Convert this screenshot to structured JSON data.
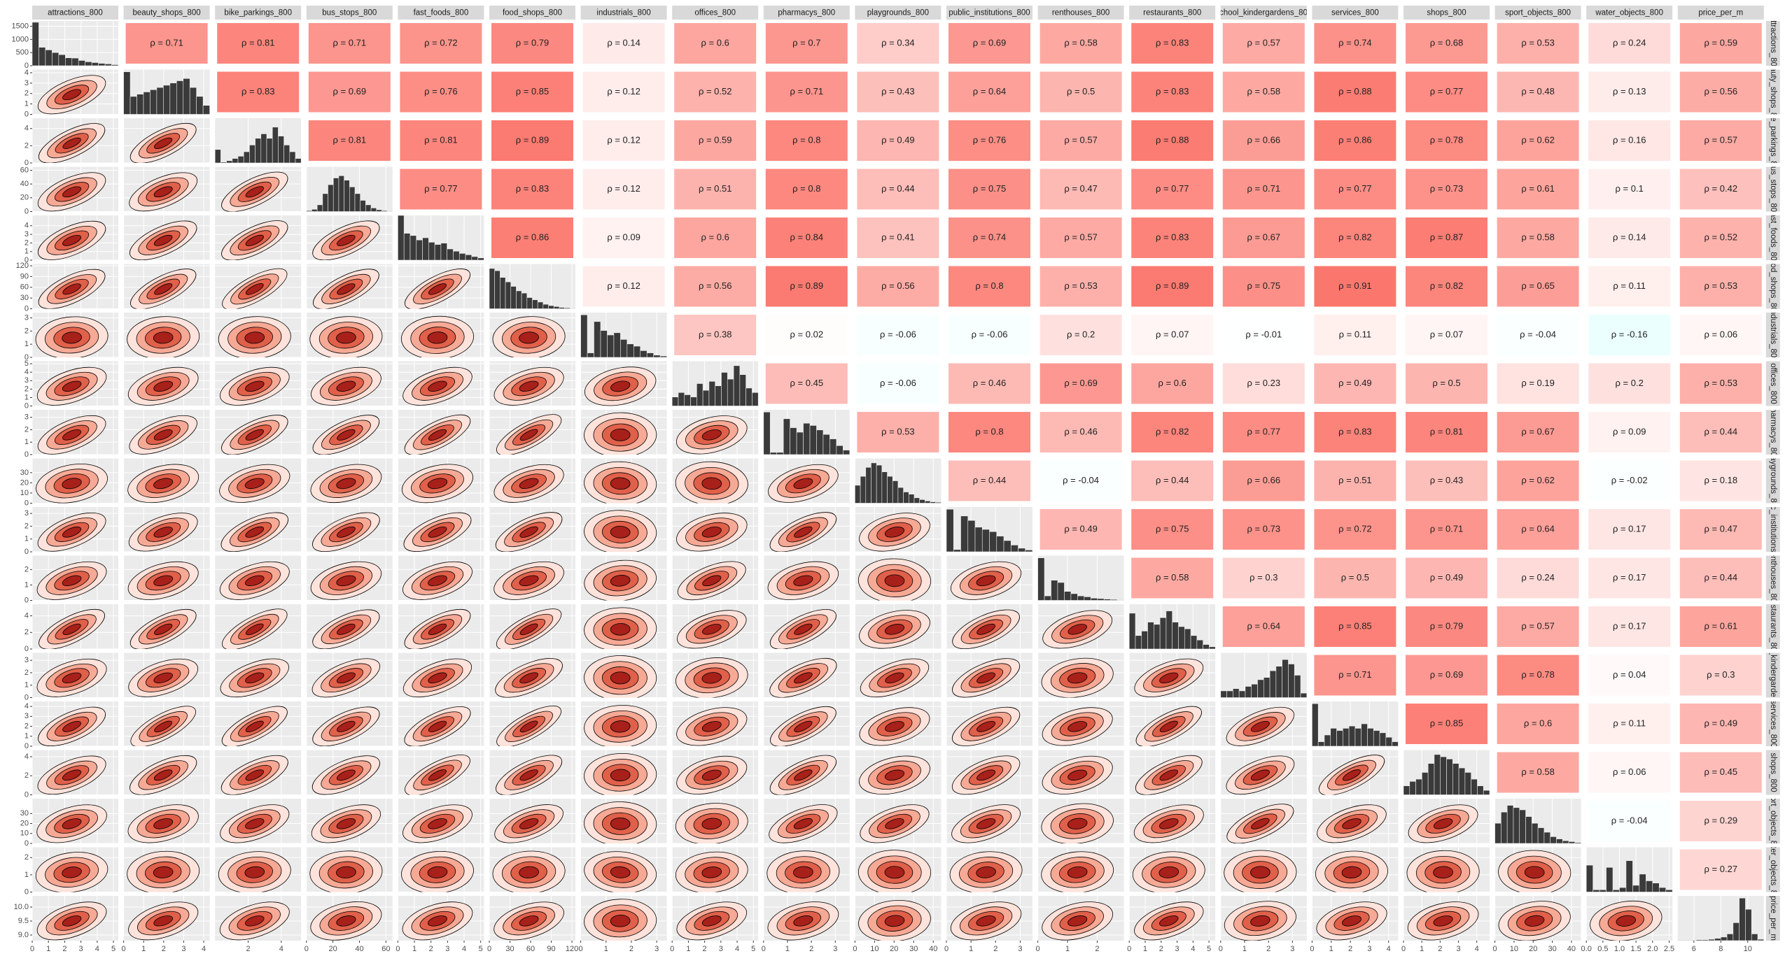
{
  "chart_data": {
    "type": "pairs",
    "colors": {
      "positive": "#fb6a5f",
      "negative": "#7fffff",
      "hist": "#3a3a3a"
    },
    "variables": [
      {
        "name": "attractions_800",
        "lim": [
          0,
          5.3
        ],
        "xticks": [
          0,
          1,
          2,
          3,
          4,
          5
        ],
        "yticks": [
          0,
          500,
          1000,
          1500
        ],
        "hist_lim": [
          0,
          1700
        ],
        "hist": [
          1650,
          700,
          600,
          500,
          420,
          300,
          290,
          200,
          150,
          120,
          90,
          70,
          40
        ]
      },
      {
        "name": "beauty_shops_800",
        "lim": [
          0,
          4.3
        ],
        "xticks": [
          0,
          1,
          2,
          3,
          4
        ],
        "yticks": [
          0,
          1,
          2,
          3,
          4
        ],
        "hist_lim": [
          0,
          100
        ],
        "hist": [
          95,
          40,
          45,
          50,
          55,
          60,
          65,
          70,
          75,
          80,
          60,
          40,
          20
        ]
      },
      {
        "name": "bike_parkings_800",
        "lim": [
          0,
          5.2
        ],
        "xticks": [
          2,
          4
        ],
        "yticks": [
          0,
          2,
          4
        ],
        "hist_lim": [
          0,
          100
        ],
        "hist": [
          30,
          2,
          5,
          10,
          15,
          25,
          40,
          55,
          65,
          55,
          80,
          60,
          40,
          25,
          10
        ]
      },
      {
        "name": "bus_stops_800",
        "lim": [
          0,
          65
        ],
        "xticks": [
          0,
          20,
          40,
          60
        ],
        "yticks": [
          0,
          20,
          40,
          60
        ],
        "hist_lim": [
          0,
          100
        ],
        "hist": [
          2,
          5,
          15,
          40,
          60,
          75,
          80,
          70,
          55,
          40,
          25,
          15,
          8,
          4,
          2,
          1
        ]
      },
      {
        "name": "fast_foods_800",
        "lim": [
          0,
          5.2
        ],
        "xticks": [
          0,
          1,
          2,
          3,
          4,
          5
        ],
        "yticks": [
          0,
          1,
          2,
          3,
          4
        ],
        "hist_lim": [
          0,
          100
        ],
        "hist": [
          100,
          60,
          55,
          45,
          50,
          40,
          35,
          38,
          25,
          20,
          15,
          12,
          8,
          5
        ]
      },
      {
        "name": "food_shops_800",
        "lim": [
          0,
          125
        ],
        "xticks": [
          0,
          30,
          60,
          90,
          120
        ],
        "yticks": [
          0,
          30,
          60,
          90,
          120
        ],
        "hist_lim": [
          0,
          100
        ],
        "hist": [
          90,
          85,
          70,
          60,
          50,
          40,
          35,
          25,
          20,
          15,
          10,
          7,
          5,
          3,
          2,
          1
        ]
      },
      {
        "name": "industrials_800",
        "lim": [
          0,
          3.4
        ],
        "xticks": [
          0,
          1,
          2,
          3
        ],
        "yticks": [
          0,
          1,
          2,
          3
        ],
        "hist_lim": [
          0,
          100
        ],
        "hist": [
          95,
          10,
          80,
          60,
          50,
          55,
          40,
          30,
          25,
          15,
          10,
          5,
          3
        ]
      },
      {
        "name": "offices_800",
        "lim": [
          0,
          5.3
        ],
        "xticks": [
          0,
          1,
          2,
          3,
          4,
          5
        ],
        "yticks": [
          0,
          1,
          2,
          3,
          4,
          5
        ],
        "hist_lim": [
          0,
          100
        ],
        "hist": [
          20,
          30,
          25,
          20,
          50,
          35,
          55,
          45,
          75,
          60,
          90,
          70,
          40,
          30
        ]
      },
      {
        "name": "pharmacys_800",
        "lim": [
          0,
          3.6
        ],
        "xticks": [
          0,
          1,
          2,
          3
        ],
        "yticks": [
          0,
          1,
          2,
          3
        ],
        "hist_lim": [
          0,
          100
        ],
        "hist": [
          95,
          5,
          5,
          80,
          60,
          50,
          70,
          65,
          55,
          45,
          35,
          20,
          10
        ]
      },
      {
        "name": "playgrounds_800",
        "lim": [
          0,
          44
        ],
        "xticks": [
          0,
          10,
          20,
          30,
          40
        ],
        "yticks": [
          0,
          10,
          20,
          30
        ],
        "hist_lim": [
          0,
          100
        ],
        "hist": [
          40,
          60,
          80,
          90,
          85,
          70,
          60,
          50,
          35,
          25,
          20,
          12,
          8,
          5,
          3,
          2
        ]
      },
      {
        "name": "public_institutions_800",
        "lim": [
          0,
          3.5
        ],
        "xticks": [
          0,
          1,
          2,
          3
        ],
        "yticks": [
          0,
          1,
          2,
          3
        ],
        "hist_lim": [
          0,
          100
        ],
        "hist": [
          95,
          5,
          80,
          70,
          55,
          50,
          45,
          35,
          25,
          15,
          8,
          4
        ]
      },
      {
        "name": "renthouses_800",
        "lim": [
          0,
          2.9
        ],
        "xticks": [
          0,
          1,
          2
        ],
        "yticks": [
          0,
          1,
          2
        ],
        "hist_lim": [
          0,
          100
        ],
        "hist": [
          95,
          10,
          45,
          40,
          20,
          15,
          10,
          8,
          5,
          4,
          3,
          2,
          1
        ]
      },
      {
        "name": "restaurants_800",
        "lim": [
          0,
          5.4
        ],
        "xticks": [
          0,
          1,
          2,
          3,
          4,
          5
        ],
        "yticks": [
          0,
          2,
          4
        ],
        "hist_lim": [
          0,
          100
        ],
        "hist": [
          80,
          30,
          40,
          60,
          55,
          70,
          85,
          60,
          50,
          45,
          30,
          20,
          10,
          5
        ]
      },
      {
        "name": "school_kindergardens_800",
        "lim": [
          0,
          3.6
        ],
        "xticks": [
          0,
          1,
          2,
          3
        ],
        "yticks": [
          0,
          1,
          2,
          3
        ],
        "hist_lim": [
          0,
          100
        ],
        "hist": [
          15,
          15,
          20,
          15,
          25,
          30,
          40,
          45,
          60,
          70,
          85,
          75,
          50,
          10
        ]
      },
      {
        "name": "services_800",
        "lim": [
          0,
          4.5
        ],
        "xticks": [
          0,
          1,
          2,
          3,
          4
        ],
        "yticks": [
          0,
          1,
          2,
          3,
          4
        ],
        "hist_lim": [
          0,
          100
        ],
        "hist": [
          95,
          10,
          25,
          40,
          35,
          40,
          45,
          40,
          50,
          40,
          35,
          30,
          20,
          10
        ]
      },
      {
        "name": "shops_800",
        "lim": [
          0,
          4.7
        ],
        "xticks": [
          0,
          1,
          2,
          3,
          4
        ],
        "yticks": [
          0,
          2,
          4
        ],
        "hist_lim": [
          0,
          100
        ],
        "hist": [
          20,
          30,
          35,
          50,
          70,
          90,
          85,
          80,
          70,
          60,
          50,
          35,
          20,
          10
        ]
      },
      {
        "name": "sport_objects_800",
        "lim": [
          0,
          45
        ],
        "xticks": [
          0,
          10,
          20,
          30,
          40
        ],
        "yticks": [
          0,
          10,
          20,
          30
        ],
        "hist_lim": [
          0,
          100
        ],
        "hist": [
          45,
          70,
          85,
          80,
          75,
          60,
          45,
          35,
          25,
          15,
          10,
          6,
          4,
          2
        ]
      },
      {
        "name": "water_objects_800",
        "lim": [
          0,
          2.6
        ],
        "xticks": [
          {
            "value": 0,
            "label": "0.0"
          },
          {
            "value": 0.5,
            "label": "0.5"
          },
          {
            "value": 1,
            "label": "1.0"
          },
          {
            "value": 1.5,
            "label": "1.5"
          },
          {
            "value": 2,
            "label": "2.0"
          },
          {
            "value": 2.5,
            "label": "2.5"
          }
        ],
        "yticks": [
          0,
          1,
          2
        ],
        "hist_lim": [
          0,
          100
        ],
        "hist": [
          60,
          5,
          5,
          55,
          5,
          10,
          70,
          15,
          40,
          25,
          20,
          10,
          5
        ]
      },
      {
        "name": "price_per_m",
        "lim": [
          4.8,
          11.2
        ],
        "ylim": [
          8.8,
          10.4
        ],
        "xticks": [
          6,
          8,
          10
        ],
        "yticks": [
          {
            "value": 9,
            "label": "9.0"
          },
          {
            "value": 9.5,
            "label": "9.5"
          },
          {
            "value": 10,
            "label": "10.0"
          }
        ],
        "hist_lim": [
          0,
          100
        ],
        "hist": [
          1,
          1,
          1,
          2,
          2,
          3,
          5,
          8,
          15,
          40,
          95,
          70,
          15,
          3
        ]
      }
    ],
    "correlations": {
      "values": [
        [
          0.71,
          0.81,
          0.71,
          0.72,
          0.79,
          0.14,
          0.6,
          0.7,
          0.34,
          0.69,
          0.58,
          0.83,
          0.57,
          0.74,
          0.68,
          0.53,
          0.24,
          0.59
        ],
        [
          0.83,
          0.69,
          0.76,
          0.85,
          0.12,
          0.52,
          0.71,
          0.43,
          0.64,
          0.5,
          0.83,
          0.58,
          0.88,
          0.77,
          0.48,
          0.13,
          0.56
        ],
        [
          0.81,
          0.81,
          0.89,
          0.12,
          0.59,
          0.8,
          0.49,
          0.76,
          0.57,
          0.88,
          0.66,
          0.86,
          0.78,
          0.62,
          0.16,
          0.57
        ],
        [
          0.77,
          0.83,
          0.12,
          0.51,
          0.8,
          0.44,
          0.75,
          0.47,
          0.77,
          0.71,
          0.77,
          0.73,
          0.61,
          0.1,
          0.42
        ],
        [
          0.86,
          0.09,
          0.6,
          0.84,
          0.41,
          0.74,
          0.57,
          0.83,
          0.67,
          0.82,
          0.87,
          0.58,
          0.14,
          0.52
        ],
        [
          0.12,
          0.56,
          0.89,
          0.56,
          0.8,
          0.53,
          0.89,
          0.75,
          0.91,
          0.82,
          0.65,
          0.11,
          0.53
        ],
        [
          0.38,
          0.02,
          -0.06,
          -0.06,
          0.2,
          0.07,
          -0.01,
          0.11,
          0.07,
          -0.04,
          -0.16,
          0.06
        ],
        [
          0.45,
          -0.06,
          0.46,
          0.69,
          0.6,
          0.23,
          0.49,
          0.5,
          0.19,
          0.2,
          0.53
        ],
        [
          0.53,
          0.8,
          0.46,
          0.82,
          0.77,
          0.83,
          0.81,
          0.67,
          0.09,
          0.44
        ],
        [
          0.44,
          -0.04,
          0.44,
          0.66,
          0.51,
          0.43,
          0.62,
          -0.02,
          0.18
        ],
        [
          0.49,
          0.75,
          0.73,
          0.72,
          0.71,
          0.64,
          0.17,
          0.47
        ],
        [
          0.58,
          0.3,
          0.5,
          0.49,
          0.24,
          0.17,
          0.44
        ],
        [
          0.64,
          0.85,
          0.79,
          0.57,
          0.17,
          0.61
        ],
        [
          0.71,
          0.69,
          0.78,
          0.04,
          0.3
        ],
        [
          0.85,
          0.6,
          0.11,
          0.49
        ],
        [
          0.58,
          0.06,
          0.45
        ],
        [
          -0.04,
          0.29
        ],
        [
          0.27
        ]
      ],
      "value_labels": [
        [
          "ρ = 0.71",
          "ρ = 0.81",
          "ρ = 0.71",
          "ρ = 0.72",
          "ρ = 0.79",
          "ρ = 0.14",
          "ρ = 0.6",
          "ρ = 0.7",
          "ρ = 0.34",
          "ρ = 0.69",
          "ρ = 0.58",
          "ρ = 0.83",
          "ρ = 0.57",
          "ρ = 0.74",
          "ρ = 0.68",
          "ρ = 0.53",
          "ρ = 0.24",
          "ρ = 0.59"
        ],
        [
          "ρ = 0.83",
          "ρ = 0.69",
          "ρ = 0.76",
          "ρ = 0.85",
          "ρ = 0.12",
          "ρ = 0.52",
          "ρ = 0.71",
          "ρ = 0.43",
          "ρ = 0.64",
          "ρ = 0.5",
          "ρ = 0.83",
          "ρ = 0.58",
          "ρ = 0.88",
          "ρ = 0.77",
          "ρ = 0.48",
          "ρ = 0.13",
          "ρ = 0.56"
        ],
        [
          "ρ = 0.81",
          "ρ = 0.81",
          "ρ = 0.89",
          "ρ = 0.12",
          "ρ = 0.59",
          "ρ = 0.8",
          "ρ = 0.49",
          "ρ = 0.76",
          "ρ = 0.57",
          "ρ = 0.88",
          "ρ = 0.66",
          "ρ = 0.86",
          "ρ = 0.78",
          "ρ = 0.62",
          "ρ = 0.16",
          "ρ = 0.57"
        ],
        [
          "ρ = 0.77",
          "ρ = 0.83",
          "ρ = 0.12",
          "ρ = 0.51",
          "ρ = 0.8",
          "ρ = 0.44",
          "ρ = 0.75",
          "ρ = 0.47",
          "ρ = 0.77",
          "ρ = 0.71",
          "ρ = 0.77",
          "ρ = 0.73",
          "ρ = 0.61",
          "ρ = 0.1",
          "ρ = 0.42"
        ],
        [
          "ρ = 0.86",
          "ρ = 0.09",
          "ρ = 0.6",
          "ρ = 0.84",
          "ρ = 0.41",
          "ρ = 0.74",
          "ρ = 0.57",
          "ρ = 0.83",
          "ρ = 0.67",
          "ρ = 0.82",
          "ρ = 0.87",
          "ρ = 0.58",
          "ρ = 0.14",
          "ρ = 0.52"
        ],
        [
          "ρ = 0.12",
          "ρ = 0.56",
          "ρ = 0.89",
          "ρ = 0.56",
          "ρ = 0.8",
          "ρ = 0.53",
          "ρ = 0.89",
          "ρ = 0.75",
          "ρ = 0.91",
          "ρ = 0.82",
          "ρ = 0.65",
          "ρ = 0.11",
          "ρ = 0.53"
        ],
        [
          "ρ = 0.38",
          "ρ = 0.02",
          "ρ = -0.06",
          "ρ = -0.06",
          "ρ = 0.2",
          "ρ = 0.07",
          "ρ = -0.01",
          "ρ = 0.11",
          "ρ = 0.07",
          "ρ = -0.04",
          "ρ = -0.16",
          "ρ = 0.06"
        ],
        [
          "ρ = 0.45",
          "ρ = -0.06",
          "ρ = 0.46",
          "ρ = 0.69",
          "ρ = 0.6",
          "ρ = 0.23",
          "ρ = 0.49",
          "ρ = 0.5",
          "ρ = 0.19",
          "ρ = 0.2",
          "ρ = 0.53"
        ],
        [
          "ρ = 0.53",
          "ρ = 0.8",
          "ρ = 0.46",
          "ρ = 0.82",
          "ρ = 0.77",
          "ρ = 0.83",
          "ρ = 0.81",
          "ρ = 0.67",
          "ρ = 0.09",
          "ρ = 0.44"
        ],
        [
          "ρ = 0.44",
          "ρ = -0.04",
          "ρ = 0.44",
          "ρ = 0.66",
          "ρ = 0.51",
          "ρ = 0.43",
          "ρ = 0.62",
          "ρ = -0.02",
          "ρ = 0.18"
        ],
        [
          "ρ = 0.49",
          "ρ = 0.75",
          "ρ = 0.73",
          "ρ = 0.72",
          "ρ = 0.71",
          "ρ = 0.64",
          "ρ = 0.17",
          "ρ = 0.47"
        ],
        [
          "ρ = 0.58",
          "ρ = 0.3",
          "ρ = 0.5",
          "ρ = 0.49",
          "ρ = 0.24",
          "ρ = 0.17",
          "ρ = 0.44"
        ],
        [
          "ρ = 0.64",
          "ρ = 0.85",
          "ρ = 0.79",
          "ρ = 0.57",
          "ρ = 0.17",
          "ρ = 0.61"
        ],
        [
          "ρ = 0.71",
          "ρ = 0.69",
          "ρ = 0.78",
          "ρ = 0.04",
          "ρ = 0.3"
        ],
        [
          "ρ = 0.85",
          "ρ = 0.6",
          "ρ = 0.11",
          "ρ = 0.49"
        ],
        [
          "ρ = 0.58",
          "ρ = 0.06",
          "ρ = 0.45"
        ],
        [
          "ρ = -0.04",
          "ρ = 0.29"
        ],
        [
          "ρ = 0.27"
        ]
      ]
    }
  }
}
